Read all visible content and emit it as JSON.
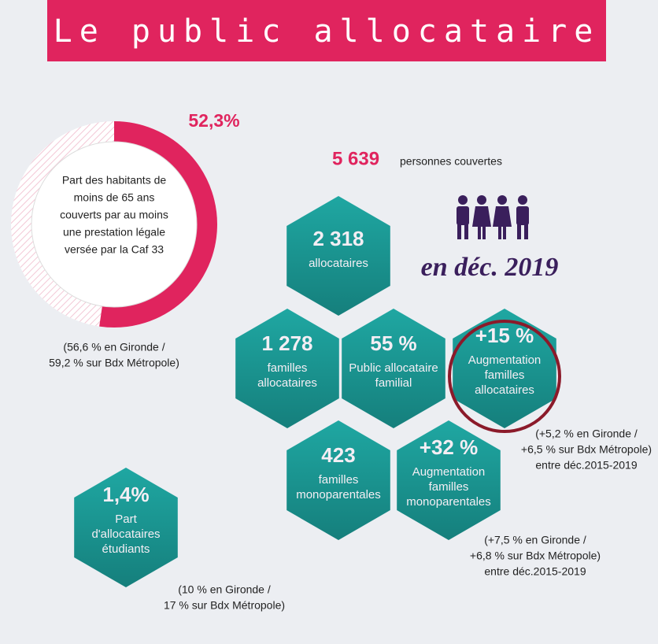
{
  "title": "Le public allocataire",
  "donut": {
    "value": 52.3,
    "label": "52,3%",
    "description": [
      "Part des habitants de",
      "moins de  65 ans",
      "couverts par au moins",
      "une prestation légale",
      "versée par la Caf 33"
    ],
    "note": [
      "(56,6 % en Gironde /",
      "59,2 % sur Bdx Métropole)"
    ]
  },
  "persons": {
    "number": "5 639",
    "text": "personnes couvertes",
    "date": "en déc. 2019"
  },
  "hexagons": [
    {
      "value": "2 318",
      "lines": [
        "allocataires"
      ]
    },
    {
      "value": "1 278",
      "lines": [
        "familles",
        "allocataires"
      ]
    },
    {
      "value": "55 %",
      "lines": [
        "Public allocataire",
        "familial"
      ]
    },
    {
      "value": "+15 %",
      "lines": [
        "Augmentation",
        "familles",
        "allocataires"
      ],
      "note": [
        "(+5,2 % en Gironde /",
        "+6,5 % sur Bdx Métropole)",
        "entre déc.2015-2019"
      ]
    },
    {
      "value": "423",
      "lines": [
        "familles",
        "monoparentales"
      ]
    },
    {
      "value": "+32 %",
      "lines": [
        "Augmentation",
        "familles",
        "monoparentales"
      ],
      "note": [
        "(+7,5 % en Gironde /",
        "+6,8 % sur Bdx Métropole)",
        "entre déc.2015-2019"
      ]
    },
    {
      "value": "1,4%",
      "lines": [
        "Part",
        "d'allocataires",
        "étudiants"
      ],
      "note": [
        "(10 % en Gironde /",
        "17 % sur Bdx Métropole)"
      ]
    }
  ]
}
